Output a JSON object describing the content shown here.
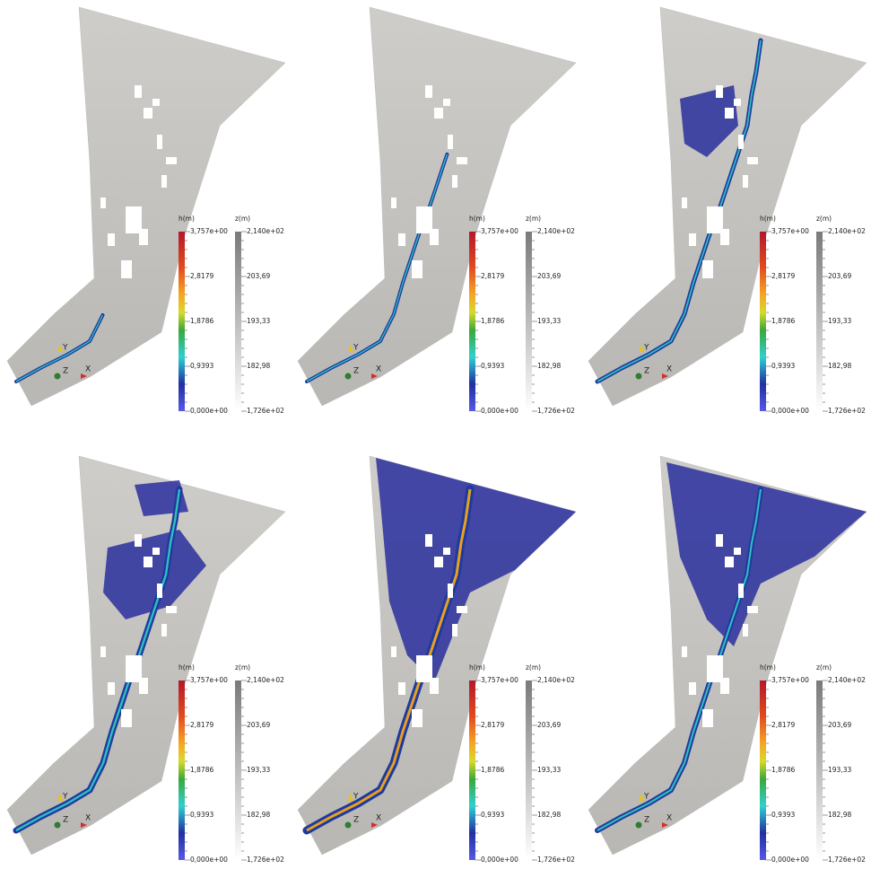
{
  "panels": [
    {
      "h_bar": {
        "title": "h(m)",
        "labels": [
          "3,757e+00",
          "2,8179",
          "1,8786",
          "0,9393",
          "0,000e+00"
        ]
      },
      "z_bar": {
        "title": "z(m)",
        "labels": [
          "2,140e+02",
          "203,69",
          "193,33",
          "182,98",
          "1,726e+02"
        ]
      },
      "axes": [
        "Y",
        "Z",
        "X"
      ]
    },
    {
      "h_bar": {
        "title": "h(m)",
        "labels": [
          "3,757e+00",
          "2,8179",
          "1,8786",
          "0,9393",
          "0,000e+00"
        ]
      },
      "z_bar": {
        "title": "z(m)",
        "labels": [
          "2,140e+02",
          "203,69",
          "193,33",
          "182,98",
          "1,726e+02"
        ]
      },
      "axes": [
        "Y",
        "Z",
        "X"
      ]
    },
    {
      "h_bar": {
        "title": "h(m)",
        "labels": [
          "3,757e+00",
          "2,8179",
          "1,8786",
          "0,9393",
          "0,000e+00"
        ]
      },
      "z_bar": {
        "title": "z(m)",
        "labels": [
          "2,140e+02",
          "203,69",
          "193,33",
          "182,98",
          "1,726e+02"
        ]
      },
      "axes": [
        "Y",
        "Z",
        "X"
      ]
    },
    {
      "h_bar": {
        "title": "h(m)",
        "labels": [
          "3,757e+00",
          "2,8179",
          "1,8786",
          "0,9393",
          "0,000e+00"
        ]
      },
      "z_bar": {
        "title": "z(m)",
        "labels": [
          "2,140e+02",
          "203,69",
          "193,33",
          "182,98",
          "1,726e+02"
        ]
      },
      "axes": [
        "Y",
        "Z",
        "X"
      ]
    },
    {
      "h_bar": {
        "title": "h(m)",
        "labels": [
          "3,757e+00",
          "2,8179",
          "1,8786",
          "0,9393",
          "0,000e+00"
        ]
      },
      "z_bar": {
        "title": "z(m)",
        "labels": [
          "2,140e+02",
          "203,69",
          "193,33",
          "182,98",
          "1,726e+02"
        ]
      },
      "axes": [
        "Y",
        "Z",
        "X"
      ]
    },
    {
      "h_bar": {
        "title": "h(m)",
        "labels": [
          "3,757e+00",
          "2,8179",
          "1,8786",
          "0,9393",
          "0,000e+00"
        ]
      },
      "z_bar": {
        "title": "z(m)",
        "labels": [
          "2,140e+02",
          "203,69",
          "193,33",
          "182,98",
          "1,726e+02"
        ]
      },
      "axes": [
        "Y",
        "Z",
        "X"
      ]
    }
  ]
}
